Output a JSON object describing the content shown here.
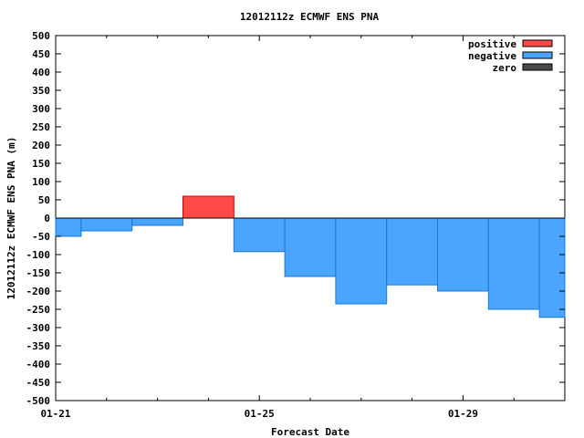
{
  "chart_data": {
    "type": "bar",
    "title": "12012112z ECMWF ENS PNA",
    "xlabel": "Forecast Date",
    "ylabel": "12012112z ECMWF ENS PNA (m)",
    "ylim": [
      -500,
      500
    ],
    "yticks": [
      500,
      450,
      400,
      350,
      300,
      250,
      200,
      150,
      100,
      50,
      0,
      -50,
      -100,
      -150,
      -200,
      -250,
      -300,
      -350,
      -400,
      -450,
      -500
    ],
    "xlim_days": [
      0,
      10
    ],
    "xticks": [
      {
        "label": "01-21",
        "day": 0
      },
      {
        "label": "01-25",
        "day": 4
      },
      {
        "label": "01-29",
        "day": 8
      }
    ],
    "bars": [
      {
        "start_day": 0.0,
        "end_day": 0.5,
        "value": -50
      },
      {
        "start_day": 0.5,
        "end_day": 1.5,
        "value": -35
      },
      {
        "start_day": 1.5,
        "end_day": 2.5,
        "value": -20
      },
      {
        "start_day": 2.5,
        "end_day": 3.5,
        "value": 60
      },
      {
        "start_day": 3.5,
        "end_day": 4.5,
        "value": -92
      },
      {
        "start_day": 4.5,
        "end_day": 5.5,
        "value": -160
      },
      {
        "start_day": 5.5,
        "end_day": 6.5,
        "value": -235
      },
      {
        "start_day": 6.5,
        "end_day": 7.5,
        "value": -183
      },
      {
        "start_day": 7.5,
        "end_day": 8.5,
        "value": -200
      },
      {
        "start_day": 8.5,
        "end_day": 9.5,
        "value": -250
      },
      {
        "start_day": 9.5,
        "end_day": 10.0,
        "value": -272
      }
    ],
    "legend": [
      {
        "name": "positive",
        "color": "#ff4a4a"
      },
      {
        "name": "negative",
        "color": "#49a5ff"
      },
      {
        "name": "zero",
        "color": "#4a4a4a"
      }
    ],
    "legend_position": "top-right",
    "grid": false
  }
}
